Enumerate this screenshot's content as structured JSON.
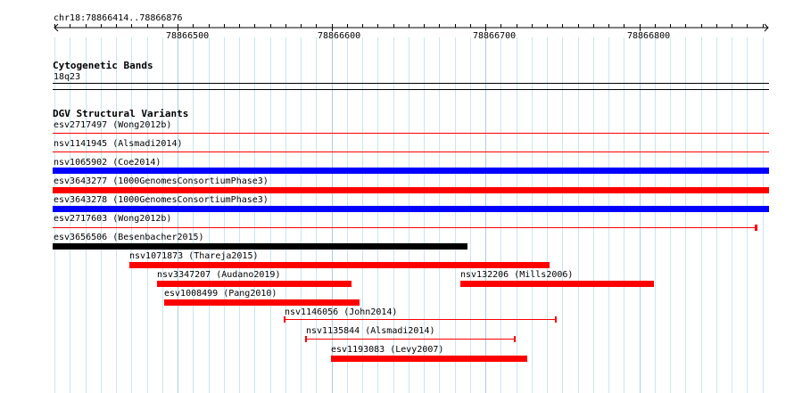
{
  "ruler": {
    "location": "chr18:78866414..78866876",
    "ticks": [
      "78866500",
      "78866600",
      "78866700",
      "78866800"
    ],
    "left_arrow_glyph": "<",
    "right_arrow_glyph": ">"
  },
  "cytogenetic": {
    "title": "Cytogenetic Bands",
    "band": "18q23"
  },
  "dgv": {
    "title": "DGV Structural Variants",
    "features": [
      {
        "label": "esv2717497 (Wong2012b)",
        "color": "#ff0000",
        "style": "thin"
      },
      {
        "label": "nsv1141945 (Alsmadi2014)",
        "color": "#ff0000",
        "style": "thin"
      },
      {
        "label": "nsv1065902 (Coe2014)",
        "color": "#0000ff",
        "style": "thick"
      },
      {
        "label": "esv3643277 (1000GenomesConsortiumPhase3)",
        "color": "#ff0000",
        "style": "thick"
      },
      {
        "label": "esv3643278 (1000GenomesConsortiumPhase3)",
        "color": "#0000ff",
        "style": "thick"
      },
      {
        "label": "esv2717603 (Wong2012b)",
        "color": "#ff0000",
        "style": "thin-capped"
      },
      {
        "label": "esv3656506 (Besenbacher2015)",
        "color": "#000000",
        "style": "thick"
      },
      {
        "label": "nsv1071873 (Thareja2015)",
        "color": "#ff0000",
        "style": "thick"
      },
      {
        "label": "nsv3347207 (Audano2019)",
        "color": "#ff0000",
        "style": "thick"
      },
      {
        "label": "nsv132206 (Mills2006)",
        "color": "#ff0000",
        "style": "thick"
      },
      {
        "label": "esv1008499 (Pang2010)",
        "color": "#ff0000",
        "style": "thick"
      },
      {
        "label": "nsv1146056 (John2014)",
        "color": "#ff0000",
        "style": "thin-capped"
      },
      {
        "label": "nsv1135844 (Alsmadi2014)",
        "color": "#ff0000",
        "style": "thin-capped"
      },
      {
        "label": "esv1193083 (Levy2007)",
        "color": "#ff0000",
        "style": "thick"
      }
    ]
  },
  "colors": {
    "grid": "#c8e6f0",
    "grid_major": "#a9cfe0",
    "gain": "#0000ff",
    "loss": "#ff0000",
    "complex": "#000000"
  }
}
